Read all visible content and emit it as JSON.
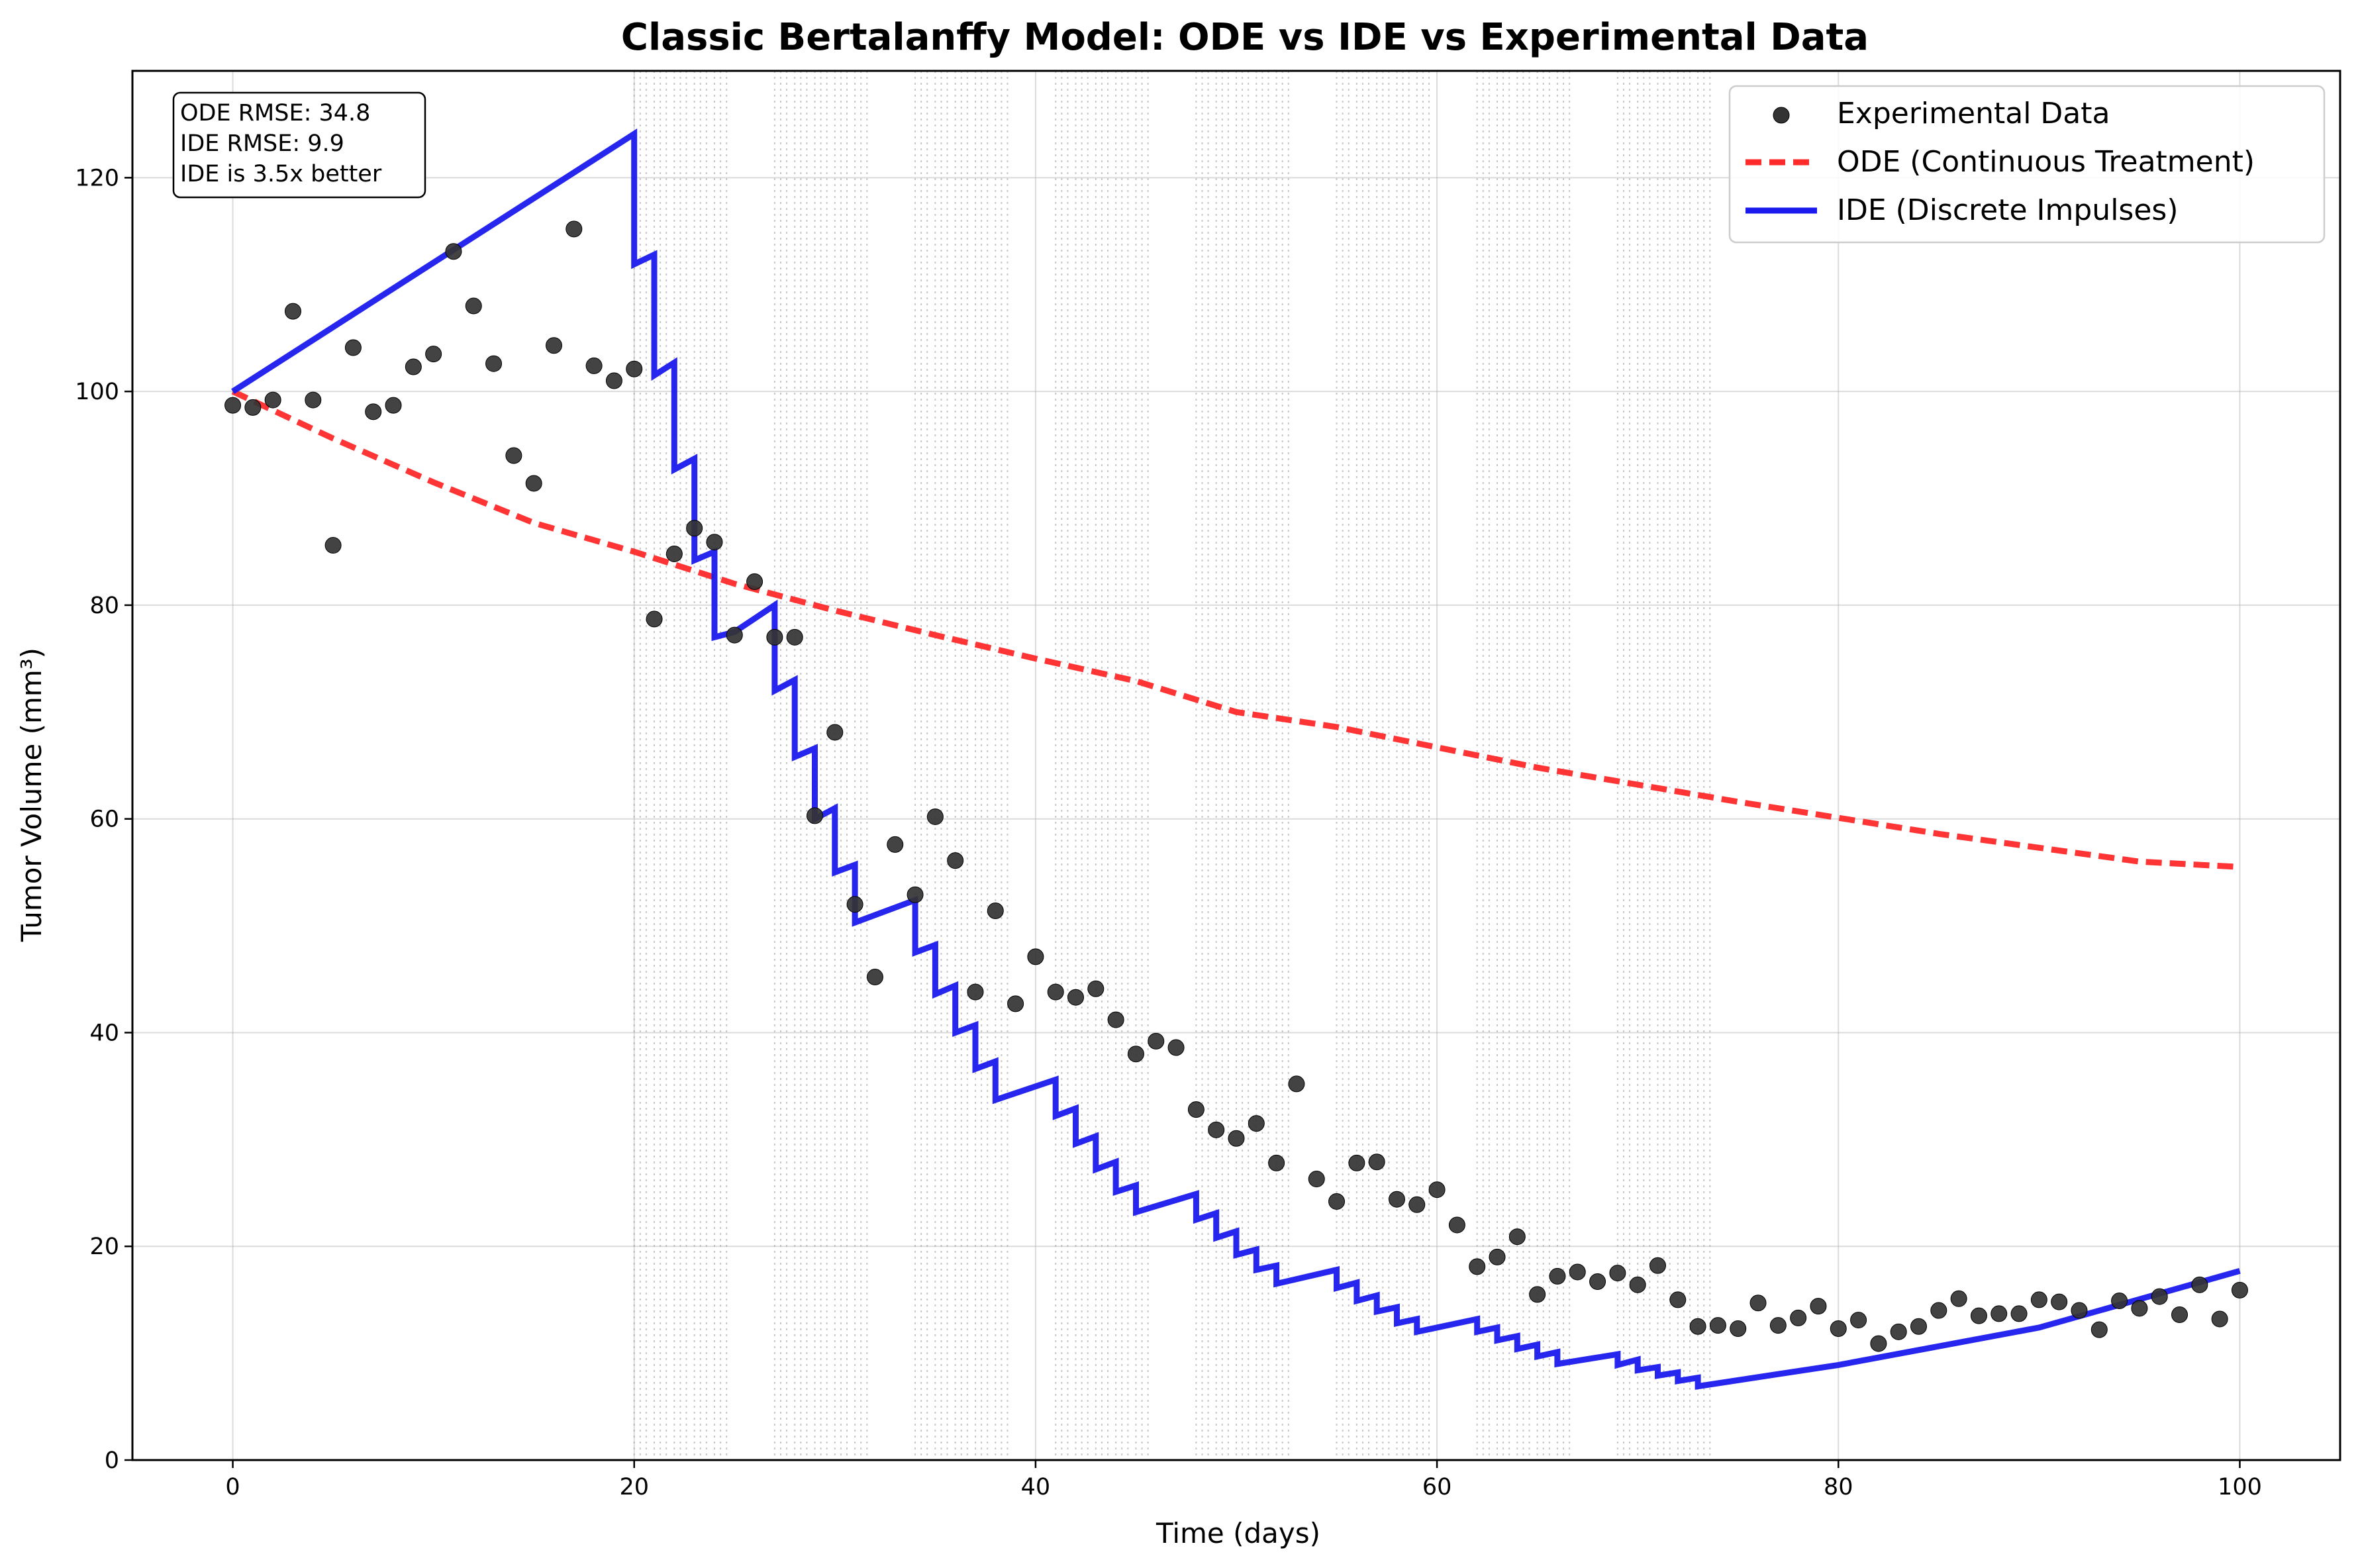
{
  "chart_data": {
    "type": "line",
    "title": "Classic Bertalanffy Model: ODE vs IDE vs Experimental Data",
    "xlabel": "Time (days)",
    "ylabel": "Tumor Volume (mm³)",
    "xlim": [
      -5,
      105
    ],
    "ylim": [
      0,
      130
    ],
    "xticks": [
      0,
      20,
      40,
      60,
      80,
      100
    ],
    "yticks": [
      0,
      20,
      40,
      60,
      80,
      100,
      120
    ],
    "grid": true,
    "legend_position": "top-right",
    "stats_box": [
      "ODE RMSE: 34.8",
      "IDE RMSE: 9.9",
      "IDE is 3.5x better"
    ],
    "impulse_days": [
      20,
      20.3,
      20.6,
      21,
      21.3,
      21.6,
      22,
      22.3,
      22.6,
      23,
      23.3,
      23.6,
      24,
      24.3,
      24.6,
      27,
      27.3,
      27.6,
      28,
      28.3,
      28.6,
      29,
      29.3,
      29.6,
      30,
      30.3,
      30.6,
      31,
      31.3,
      31.6,
      34,
      34.3,
      34.6,
      35,
      35.3,
      35.6,
      36,
      36.3,
      36.6,
      37,
      37.3,
      37.6,
      38,
      38.3,
      38.6,
      41,
      41.3,
      41.6,
      42,
      42.3,
      42.6,
      43,
      43.3,
      43.6,
      44,
      44.3,
      44.6,
      45,
      45.3,
      45.6,
      48,
      48.3,
      48.6,
      49,
      49.3,
      49.6,
      50,
      50.3,
      50.6,
      51,
      51.3,
      51.6,
      52,
      52.3,
      52.6,
      55,
      55.3,
      55.6,
      56,
      56.3,
      56.6,
      57,
      57.3,
      57.6,
      58,
      58.3,
      58.6,
      59,
      59.3,
      59.6,
      62,
      62.3,
      62.6,
      63,
      63.3,
      63.6,
      64,
      64.3,
      64.6,
      65,
      65.3,
      65.6,
      66,
      66.3,
      66.6,
      69,
      69.3,
      69.6,
      70,
      70.3,
      70.6,
      71,
      71.3,
      71.6,
      72,
      72.3,
      72.6,
      73,
      73.3,
      73.6
    ],
    "series": [
      {
        "name": "Experimental Data",
        "kind": "scatter",
        "color": "#333333",
        "x": [
          0,
          1,
          2,
          3,
          4,
          5,
          6,
          7,
          8,
          9,
          10,
          11,
          12,
          13,
          14,
          15,
          16,
          17,
          18,
          19,
          20,
          21,
          22,
          23,
          24,
          25,
          26,
          27,
          28,
          29,
          30,
          31,
          32,
          33,
          34,
          35,
          36,
          37,
          38,
          39,
          40,
          41,
          42,
          43,
          44,
          45,
          46,
          47,
          48,
          49,
          50,
          51,
          52,
          53,
          54,
          55,
          56,
          57,
          58,
          59,
          60,
          61,
          62,
          63,
          64,
          65,
          66,
          67,
          68,
          69,
          70,
          71,
          72,
          73,
          74,
          75,
          76,
          77,
          78,
          79,
          80,
          81,
          82,
          83,
          84,
          85,
          86,
          87,
          88,
          89,
          90,
          91,
          92,
          93,
          94,
          95,
          96,
          97,
          98,
          99,
          100
        ],
        "y": [
          98.7,
          98.5,
          99.2,
          107.5,
          99.2,
          85.6,
          104.1,
          98.1,
          98.7,
          102.3,
          103.5,
          113.1,
          108.0,
          102.6,
          94.0,
          91.4,
          104.3,
          115.2,
          102.4,
          101.0,
          102.1,
          78.7,
          84.8,
          87.2,
          85.9,
          77.2,
          82.2,
          77.0,
          77.0,
          60.3,
          68.1,
          52.0,
          45.2,
          57.6,
          52.9,
          60.2,
          56.1,
          43.8,
          51.4,
          42.7,
          47.1,
          43.8,
          43.3,
          44.1,
          41.2,
          38.0,
          39.2,
          38.6,
          32.8,
          30.9,
          30.1,
          31.5,
          27.8,
          35.2,
          26.3,
          24.2,
          27.8,
          27.9,
          24.4,
          23.9,
          25.3,
          22.0,
          18.1,
          19.0,
          20.9,
          15.5,
          17.2,
          17.6,
          16.7,
          17.5,
          16.4,
          18.2,
          15.0,
          12.5,
          12.6,
          12.3,
          14.7,
          12.6,
          13.3,
          14.4,
          12.3,
          13.1,
          10.9,
          12.0,
          12.5,
          14.0,
          15.1,
          13.5,
          13.7,
          13.7,
          15.0,
          14.8,
          14.0,
          12.2,
          14.9,
          14.2,
          15.3,
          13.6,
          16.4,
          13.2,
          15.9
        ]
      },
      {
        "name": "ODE (Continuous Treatment)",
        "kind": "line",
        "style": "dashed",
        "color": "#ff2a2a",
        "x": [
          0,
          5,
          10,
          15,
          20,
          25,
          30,
          35,
          40,
          45,
          50,
          55,
          60,
          65,
          70,
          75,
          80,
          85,
          90,
          95,
          100
        ],
        "y": [
          100,
          95.6,
          91.5,
          87.7,
          85.0,
          82.0,
          79.5,
          77.2,
          75.0,
          72.9,
          70.0,
          68.6,
          66.7,
          64.8,
          63.2,
          61.6,
          60.1,
          58.6,
          57.3,
          56.0,
          55.5
        ]
      },
      {
        "name": "IDE (Discrete Impulses)",
        "kind": "line",
        "style": "solid",
        "color": "#1a1aee",
        "x": [
          0,
          20,
          20,
          21,
          21,
          22,
          22,
          23,
          23,
          24,
          24,
          25,
          27,
          27,
          28,
          28,
          29,
          29,
          30,
          30,
          31,
          31,
          34,
          34,
          35,
          35,
          36,
          36,
          37,
          37,
          38,
          38,
          41,
          41,
          42,
          42,
          43,
          43,
          44,
          44,
          45,
          45,
          48,
          48,
          49,
          49,
          50,
          50,
          51,
          51,
          52,
          52,
          55,
          55,
          56,
          56,
          57,
          57,
          58,
          58,
          59,
          59,
          62,
          62,
          63,
          63,
          64,
          64,
          65,
          65,
          66,
          66,
          69,
          69,
          70,
          70,
          71,
          71,
          72,
          72,
          73,
          73,
          80,
          90,
          100
        ],
        "y": [
          100,
          124.1,
          111.9,
          112.8,
          101.5,
          102.7,
          92.7,
          93.7,
          84.2,
          85.0,
          77.0,
          77.5,
          80.0,
          72.0,
          73.0,
          65.8,
          66.6,
          60.0,
          61.0,
          55.0,
          55.7,
          50.3,
          52.4,
          47.5,
          48.2,
          43.6,
          44.4,
          40.0,
          40.7,
          36.6,
          37.3,
          33.7,
          35.6,
          32.2,
          32.9,
          29.6,
          30.3,
          27.2,
          27.9,
          25.1,
          25.7,
          23.2,
          24.9,
          22.5,
          23.1,
          20.8,
          21.4,
          19.2,
          19.7,
          17.8,
          18.2,
          16.5,
          17.8,
          16.1,
          16.6,
          14.9,
          15.4,
          13.9,
          14.3,
          12.8,
          13.2,
          12.0,
          13.2,
          12.0,
          12.4,
          11.2,
          11.6,
          10.4,
          10.8,
          9.7,
          10.1,
          9.0,
          9.9,
          8.9,
          9.4,
          8.4,
          8.7,
          7.9,
          8.2,
          7.4,
          7.7,
          6.9,
          8.9,
          12.4,
          17.7
        ]
      }
    ]
  }
}
